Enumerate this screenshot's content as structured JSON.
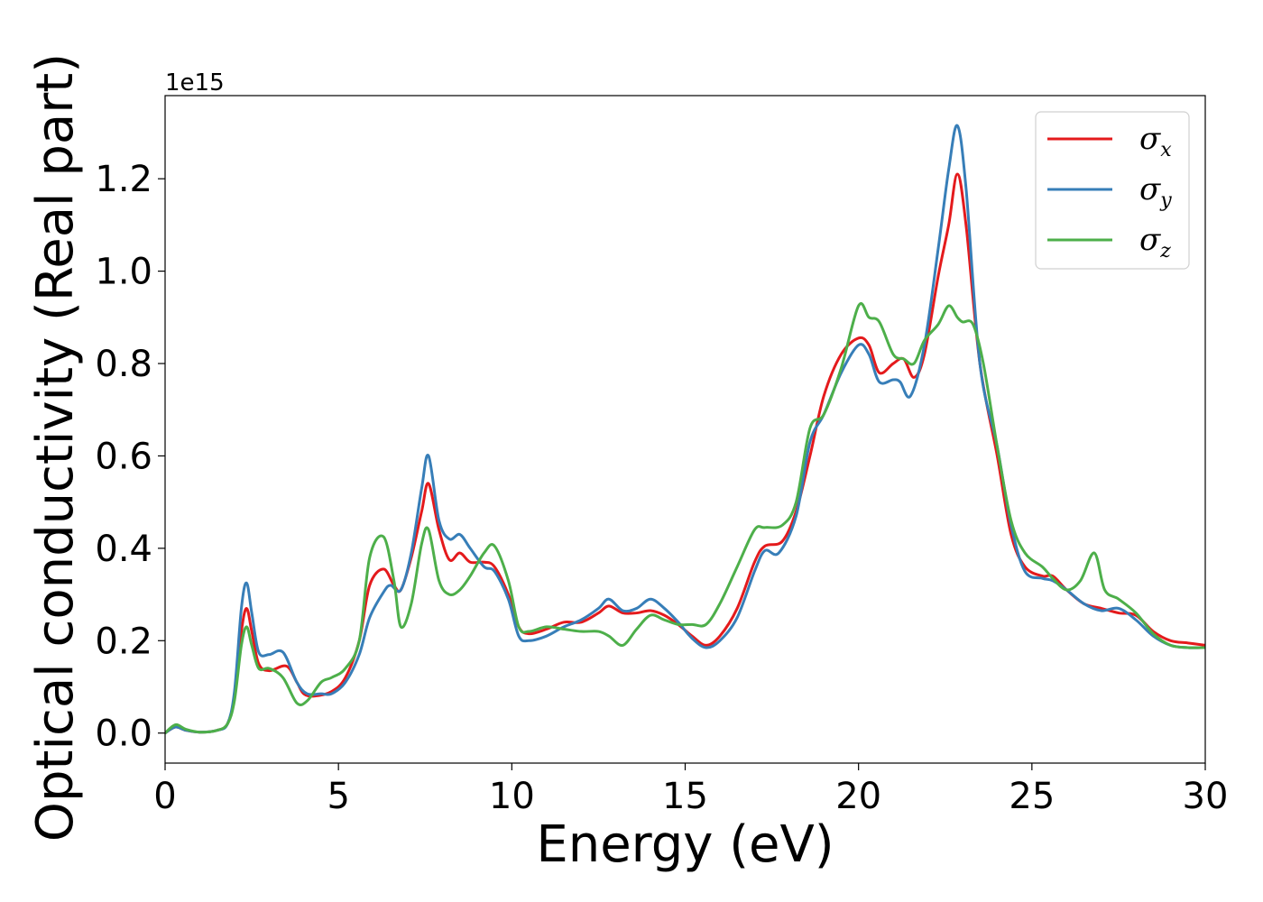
{
  "chart_data": {
    "type": "line",
    "xlabel": "Energy (eV)",
    "ylabel": "Optical conductivity (Real part)",
    "y_offset_label": "1e15",
    "xlim": [
      0,
      30
    ],
    "ylim": [
      -0.065,
      1.38
    ],
    "x_ticks": [
      0,
      5,
      10,
      15,
      20,
      25,
      30
    ],
    "x_tick_labels": [
      "0",
      "5",
      "10",
      "15",
      "20",
      "25",
      "30"
    ],
    "y_ticks": [
      0.0,
      0.2,
      0.4,
      0.6,
      0.8,
      1.0,
      1.2
    ],
    "y_tick_labels": [
      "0.0",
      "0.2",
      "0.4",
      "0.6",
      "0.8",
      "1.0",
      "1.2"
    ],
    "grid": false,
    "legend_position": "top-right",
    "series": [
      {
        "name": "σx",
        "symbol": "σ",
        "subscript": "x",
        "color": "#e41a1c",
        "points": [
          [
            0,
            0
          ],
          [
            0.3,
            0.013
          ],
          [
            0.6,
            0.006
          ],
          [
            1,
            0.002
          ],
          [
            1.5,
            0.006
          ],
          [
            1.8,
            0.02
          ],
          [
            2.0,
            0.08
          ],
          [
            2.2,
            0.22
          ],
          [
            2.35,
            0.27
          ],
          [
            2.5,
            0.22
          ],
          [
            2.7,
            0.15
          ],
          [
            3.0,
            0.135
          ],
          [
            3.5,
            0.145
          ],
          [
            3.8,
            0.11
          ],
          [
            4.0,
            0.085
          ],
          [
            4.3,
            0.08
          ],
          [
            4.8,
            0.09
          ],
          [
            5.2,
            0.12
          ],
          [
            5.6,
            0.2
          ],
          [
            5.9,
            0.32
          ],
          [
            6.3,
            0.355
          ],
          [
            6.6,
            0.32
          ],
          [
            6.8,
            0.31
          ],
          [
            7.1,
            0.38
          ],
          [
            7.4,
            0.48
          ],
          [
            7.6,
            0.54
          ],
          [
            7.9,
            0.44
          ],
          [
            8.2,
            0.375
          ],
          [
            8.5,
            0.39
          ],
          [
            8.8,
            0.37
          ],
          [
            9.2,
            0.37
          ],
          [
            9.5,
            0.36
          ],
          [
            9.9,
            0.3
          ],
          [
            10.2,
            0.23
          ],
          [
            10.5,
            0.215
          ],
          [
            11,
            0.225
          ],
          [
            11.5,
            0.24
          ],
          [
            12,
            0.24
          ],
          [
            12.5,
            0.26
          ],
          [
            12.8,
            0.275
          ],
          [
            13.2,
            0.26
          ],
          [
            13.6,
            0.26
          ],
          [
            14,
            0.265
          ],
          [
            14.4,
            0.255
          ],
          [
            14.8,
            0.235
          ],
          [
            15.2,
            0.21
          ],
          [
            15.6,
            0.19
          ],
          [
            16,
            0.21
          ],
          [
            16.5,
            0.27
          ],
          [
            17,
            0.37
          ],
          [
            17.3,
            0.405
          ],
          [
            17.8,
            0.415
          ],
          [
            18.2,
            0.48
          ],
          [
            18.6,
            0.6
          ],
          [
            19.0,
            0.73
          ],
          [
            19.5,
            0.82
          ],
          [
            20.0,
            0.855
          ],
          [
            20.3,
            0.84
          ],
          [
            20.6,
            0.78
          ],
          [
            21.0,
            0.8
          ],
          [
            21.3,
            0.81
          ],
          [
            21.6,
            0.77
          ],
          [
            21.9,
            0.82
          ],
          [
            22.3,
            0.99
          ],
          [
            22.6,
            1.1
          ],
          [
            22.85,
            1.21
          ],
          [
            23.1,
            1.1
          ],
          [
            23.5,
            0.8
          ],
          [
            24,
            0.6
          ],
          [
            24.4,
            0.43
          ],
          [
            24.8,
            0.36
          ],
          [
            25.3,
            0.34
          ],
          [
            25.6,
            0.34
          ],
          [
            26,
            0.31
          ],
          [
            26.5,
            0.28
          ],
          [
            27,
            0.27
          ],
          [
            27.5,
            0.26
          ],
          [
            28,
            0.255
          ],
          [
            28.5,
            0.22
          ],
          [
            29,
            0.2
          ],
          [
            29.5,
            0.195
          ],
          [
            30,
            0.19
          ]
        ]
      },
      {
        "name": "σy",
        "symbol": "σ",
        "subscript": "y",
        "color": "#377eb8",
        "points": [
          [
            0,
            0
          ],
          [
            0.3,
            0.013
          ],
          [
            0.6,
            0.006
          ],
          [
            1,
            0.002
          ],
          [
            1.5,
            0.006
          ],
          [
            1.8,
            0.02
          ],
          [
            2.0,
            0.09
          ],
          [
            2.2,
            0.27
          ],
          [
            2.35,
            0.325
          ],
          [
            2.5,
            0.26
          ],
          [
            2.7,
            0.175
          ],
          [
            3.0,
            0.17
          ],
          [
            3.4,
            0.175
          ],
          [
            3.8,
            0.11
          ],
          [
            4.1,
            0.085
          ],
          [
            4.5,
            0.085
          ],
          [
            4.8,
            0.085
          ],
          [
            5.2,
            0.11
          ],
          [
            5.6,
            0.17
          ],
          [
            5.9,
            0.25
          ],
          [
            6.3,
            0.305
          ],
          [
            6.5,
            0.32
          ],
          [
            6.8,
            0.31
          ],
          [
            7.1,
            0.39
          ],
          [
            7.4,
            0.53
          ],
          [
            7.6,
            0.6
          ],
          [
            7.9,
            0.46
          ],
          [
            8.2,
            0.42
          ],
          [
            8.5,
            0.43
          ],
          [
            8.8,
            0.4
          ],
          [
            9.2,
            0.36
          ],
          [
            9.5,
            0.35
          ],
          [
            9.9,
            0.29
          ],
          [
            10.2,
            0.21
          ],
          [
            10.5,
            0.2
          ],
          [
            11,
            0.21
          ],
          [
            11.5,
            0.23
          ],
          [
            12,
            0.245
          ],
          [
            12.5,
            0.27
          ],
          [
            12.8,
            0.29
          ],
          [
            13.2,
            0.265
          ],
          [
            13.6,
            0.27
          ],
          [
            14,
            0.29
          ],
          [
            14.4,
            0.27
          ],
          [
            14.8,
            0.24
          ],
          [
            15.2,
            0.205
          ],
          [
            15.6,
            0.185
          ],
          [
            16,
            0.2
          ],
          [
            16.5,
            0.25
          ],
          [
            17,
            0.35
          ],
          [
            17.3,
            0.395
          ],
          [
            17.7,
            0.39
          ],
          [
            18.2,
            0.47
          ],
          [
            18.6,
            0.63
          ],
          [
            19.0,
            0.69
          ],
          [
            19.5,
            0.78
          ],
          [
            20.0,
            0.84
          ],
          [
            20.3,
            0.82
          ],
          [
            20.6,
            0.76
          ],
          [
            21.0,
            0.765
          ],
          [
            21.2,
            0.76
          ],
          [
            21.5,
            0.73
          ],
          [
            21.9,
            0.84
          ],
          [
            22.3,
            1.05
          ],
          [
            22.6,
            1.22
          ],
          [
            22.85,
            1.315
          ],
          [
            23.1,
            1.18
          ],
          [
            23.5,
            0.8
          ],
          [
            24,
            0.62
          ],
          [
            24.4,
            0.45
          ],
          [
            24.8,
            0.35
          ],
          [
            25.3,
            0.335
          ],
          [
            25.6,
            0.33
          ],
          [
            26,
            0.31
          ],
          [
            26.5,
            0.28
          ],
          [
            27,
            0.265
          ],
          [
            27.5,
            0.27
          ],
          [
            28,
            0.245
          ],
          [
            28.5,
            0.21
          ],
          [
            29,
            0.19
          ],
          [
            29.5,
            0.185
          ],
          [
            30,
            0.185
          ]
        ]
      },
      {
        "name": "σz",
        "symbol": "σ",
        "subscript": "z",
        "color": "#4daf4a",
        "points": [
          [
            0,
            0
          ],
          [
            0.3,
            0.018
          ],
          [
            0.6,
            0.008
          ],
          [
            1,
            0.002
          ],
          [
            1.5,
            0.006
          ],
          [
            1.8,
            0.02
          ],
          [
            2.0,
            0.07
          ],
          [
            2.2,
            0.19
          ],
          [
            2.35,
            0.23
          ],
          [
            2.5,
            0.19
          ],
          [
            2.7,
            0.14
          ],
          [
            3.0,
            0.14
          ],
          [
            3.4,
            0.12
          ],
          [
            3.8,
            0.065
          ],
          [
            4.1,
            0.07
          ],
          [
            4.5,
            0.11
          ],
          [
            4.8,
            0.12
          ],
          [
            5.2,
            0.14
          ],
          [
            5.6,
            0.2
          ],
          [
            5.9,
            0.38
          ],
          [
            6.3,
            0.425
          ],
          [
            6.6,
            0.33
          ],
          [
            6.8,
            0.23
          ],
          [
            7.1,
            0.28
          ],
          [
            7.4,
            0.41
          ],
          [
            7.6,
            0.44
          ],
          [
            7.9,
            0.33
          ],
          [
            8.2,
            0.3
          ],
          [
            8.5,
            0.31
          ],
          [
            8.8,
            0.34
          ],
          [
            9.2,
            0.39
          ],
          [
            9.5,
            0.405
          ],
          [
            9.9,
            0.33
          ],
          [
            10.2,
            0.23
          ],
          [
            10.5,
            0.22
          ],
          [
            11,
            0.23
          ],
          [
            11.5,
            0.225
          ],
          [
            12,
            0.22
          ],
          [
            12.5,
            0.22
          ],
          [
            12.8,
            0.21
          ],
          [
            13.2,
            0.19
          ],
          [
            13.6,
            0.225
          ],
          [
            14,
            0.255
          ],
          [
            14.4,
            0.245
          ],
          [
            14.8,
            0.235
          ],
          [
            15.2,
            0.235
          ],
          [
            15.6,
            0.235
          ],
          [
            16,
            0.28
          ],
          [
            16.5,
            0.36
          ],
          [
            17,
            0.44
          ],
          [
            17.3,
            0.445
          ],
          [
            17.8,
            0.45
          ],
          [
            18.2,
            0.5
          ],
          [
            18.6,
            0.66
          ],
          [
            19.0,
            0.69
          ],
          [
            19.5,
            0.79
          ],
          [
            20.0,
            0.925
          ],
          [
            20.3,
            0.9
          ],
          [
            20.6,
            0.89
          ],
          [
            21.0,
            0.82
          ],
          [
            21.3,
            0.81
          ],
          [
            21.6,
            0.8
          ],
          [
            21.9,
            0.85
          ],
          [
            22.3,
            0.885
          ],
          [
            22.6,
            0.925
          ],
          [
            22.85,
            0.9
          ],
          [
            23.0,
            0.89
          ],
          [
            23.3,
            0.885
          ],
          [
            23.6,
            0.8
          ],
          [
            24,
            0.62
          ],
          [
            24.4,
            0.46
          ],
          [
            24.8,
            0.39
          ],
          [
            25.3,
            0.36
          ],
          [
            25.6,
            0.335
          ],
          [
            26,
            0.31
          ],
          [
            26.4,
            0.33
          ],
          [
            26.8,
            0.39
          ],
          [
            27.1,
            0.31
          ],
          [
            27.5,
            0.29
          ],
          [
            28,
            0.26
          ],
          [
            28.5,
            0.215
          ],
          [
            29,
            0.19
          ],
          [
            29.5,
            0.185
          ],
          [
            30,
            0.185
          ]
        ]
      }
    ]
  }
}
